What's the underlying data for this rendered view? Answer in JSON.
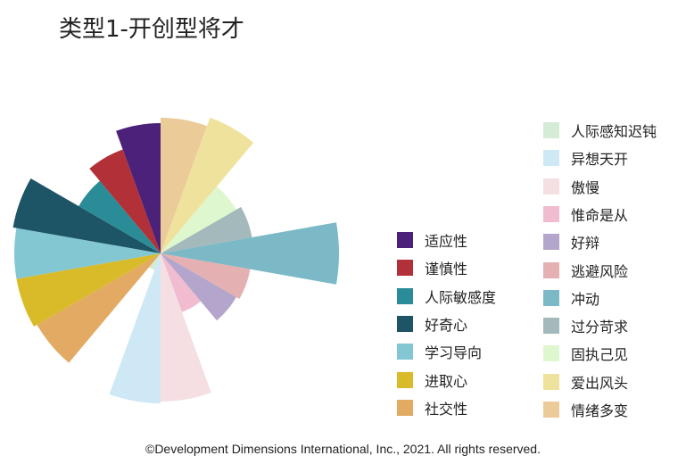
{
  "title": "类型1-开创型将才",
  "footer": "©Development Dimensions International, Inc., 2021. All rights reserved.",
  "chart_data": {
    "type": "polar-area",
    "title": "类型1-开创型将才",
    "categories": [
      "情绪多变",
      "爱出风头",
      "固执己见",
      "过分苛求",
      "冲动",
      "逃避风险",
      "好辩",
      "惟命是从",
      "傲慢",
      "异想天开",
      "人际感知迟钝",
      "社交性",
      "进取心",
      "学习导向",
      "好奇心",
      "人际敏感度",
      "谨慎性",
      "适应性"
    ],
    "values": [
      76,
      81,
      49,
      52,
      100,
      51,
      49,
      35,
      83,
      84,
      10,
      80,
      82,
      82,
      84,
      53,
      62,
      73
    ],
    "colors": [
      "#ebcb98",
      "#efe29c",
      "#def7cf",
      "#a3b9bb",
      "#7cb9c6",
      "#e4b0b1",
      "#b3a5cb",
      "#f1bcd0",
      "#f5dfe3",
      "#cfe8f5",
      "#d4ebd6",
      "#e2aa62",
      "#d9bb2a",
      "#83c7d3",
      "#1d5466",
      "#2a8c97",
      "#b23038",
      "#4c2179"
    ],
    "start_angle_deg": 0,
    "max_value": 100
  },
  "legend_left": [
    {
      "label": "适应性",
      "color": "#4c2179"
    },
    {
      "label": "谨慎性",
      "color": "#b23038"
    },
    {
      "label": "人际敏感度",
      "color": "#2a8c97"
    },
    {
      "label": "好奇心",
      "color": "#1d5466"
    },
    {
      "label": "学习导向",
      "color": "#83c7d3"
    },
    {
      "label": "进取心",
      "color": "#d9bb2a"
    },
    {
      "label": "社交性",
      "color": "#e2aa62"
    }
  ],
  "legend_right": [
    {
      "label": "人际感知迟钝",
      "color": "#d4ebd6"
    },
    {
      "label": "异想天开",
      "color": "#cfe8f5"
    },
    {
      "label": "傲慢",
      "color": "#f5dfe3"
    },
    {
      "label": "惟命是从",
      "color": "#f1bcd0"
    },
    {
      "label": "好辩",
      "color": "#b3a5cb"
    },
    {
      "label": "逃避风险",
      "color": "#e4b0b1"
    },
    {
      "label": "冲动",
      "color": "#7cb9c6"
    },
    {
      "label": "过分苛求",
      "color": "#a3b9bb"
    },
    {
      "label": "固执己见",
      "color": "#def7cf"
    },
    {
      "label": "爱出风头",
      "color": "#efe29c"
    },
    {
      "label": "情绪多变",
      "color": "#ebcb98"
    }
  ]
}
